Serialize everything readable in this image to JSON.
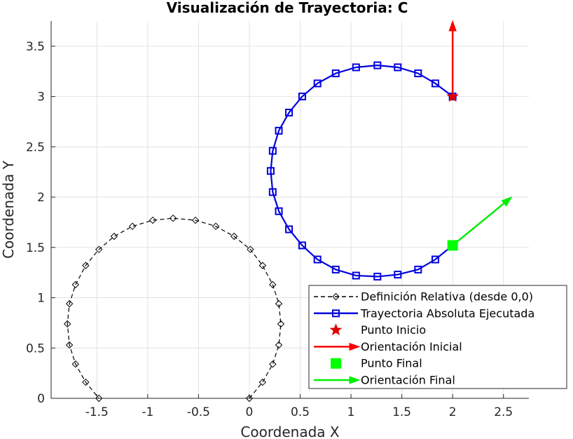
{
  "chart_data": {
    "type": "line",
    "title": "Visualización de Trayectoria: C",
    "xlabel": "Coordenada X",
    "ylabel": "Coordenada Y",
    "xlim": [
      -1.95,
      2.75
    ],
    "ylim": [
      0,
      3.75
    ],
    "xticks": [
      -1.5,
      -1,
      -0.5,
      0,
      0.5,
      1,
      1.5,
      2,
      2.5
    ],
    "xtick_labels": [
      "-1.5",
      "-1",
      "-0.5",
      "0",
      "0.5",
      "1",
      "1.5",
      "2",
      "2.5"
    ],
    "yticks": [
      0,
      0.5,
      1,
      1.5,
      2,
      2.5,
      3,
      3.5
    ],
    "ytick_labels": [
      "0",
      "0.5",
      "1",
      "1.5",
      "2",
      "2.5",
      "3",
      "3.5"
    ],
    "grid": true,
    "legend_position": "bottom-right",
    "series": [
      {
        "name": "Definición Relativa (desde 0,0)",
        "color": "#000000",
        "line": "dashed",
        "marker": "diamond",
        "x": [
          0,
          0.13,
          0.23,
          0.29,
          0.31,
          0.29,
          0.23,
          0.13,
          0.01,
          -0.15,
          -0.33,
          -0.53,
          -0.75,
          -0.95,
          -1.15,
          -1.33,
          -1.48,
          -1.61,
          -1.71,
          -1.77,
          -1.79,
          -1.77,
          -1.71,
          -1.61,
          -1.48
        ],
        "y": [
          0,
          0.16,
          0.34,
          0.53,
          0.74,
          0.94,
          1.13,
          1.32,
          1.48,
          1.61,
          1.71,
          1.77,
          1.79,
          1.77,
          1.71,
          1.61,
          1.48,
          1.32,
          1.13,
          0.94,
          0.74,
          0.53,
          0.34,
          0.16,
          0
        ]
      },
      {
        "name": "Trayectoria Absoluta Ejecutada",
        "color": "#0000dd",
        "line": "solid",
        "marker": "square",
        "x": [
          2.0,
          1.83,
          1.66,
          1.46,
          1.26,
          1.05,
          0.85,
          0.67,
          0.52,
          0.39,
          0.29,
          0.23,
          0.21,
          0.23,
          0.29,
          0.39,
          0.52,
          0.67,
          0.85,
          1.05,
          1.26,
          1.46,
          1.66,
          1.83,
          2.0
        ],
        "y": [
          3.0,
          3.13,
          3.23,
          3.29,
          3.31,
          3.29,
          3.23,
          3.13,
          3.0,
          2.84,
          2.66,
          2.46,
          2.26,
          2.05,
          1.86,
          1.68,
          1.52,
          1.38,
          1.28,
          1.22,
          1.21,
          1.23,
          1.28,
          1.38,
          1.52
        ]
      }
    ],
    "markers": [
      {
        "name": "Punto Inicio",
        "marker": "star",
        "color": "#dd0000",
        "x": 2.0,
        "y": 3.0
      },
      {
        "name": "Punto Final",
        "marker": "filled-square",
        "color": "#00ff00",
        "x": 2.0,
        "y": 1.52
      }
    ],
    "arrows": [
      {
        "name": "Orientación Inicial",
        "color": "#ff0000",
        "x0": 2.0,
        "y0": 3.0,
        "x1": 2.0,
        "y1": 3.75
      },
      {
        "name": "Orientación Final",
        "color": "#00ee00",
        "x0": 2.0,
        "y0": 1.52,
        "x1": 2.58,
        "y1": 2.0
      }
    ],
    "legend": [
      {
        "label": "Definición Relativa (desde 0,0)",
        "symbol": "dashed-diamond",
        "color": "#000000"
      },
      {
        "label": "Trayectoria Absoluta Ejecutada",
        "symbol": "line-square",
        "color": "#0000dd"
      },
      {
        "label": "Punto Inicio",
        "symbol": "star",
        "color": "#dd0000"
      },
      {
        "label": "Orientación Inicial",
        "symbol": "arrow",
        "color": "#ff0000"
      },
      {
        "label": "Punto Final",
        "symbol": "filled-square",
        "color": "#00ff00"
      },
      {
        "label": "Orientación Final",
        "symbol": "arrow",
        "color": "#00ee00"
      }
    ]
  }
}
